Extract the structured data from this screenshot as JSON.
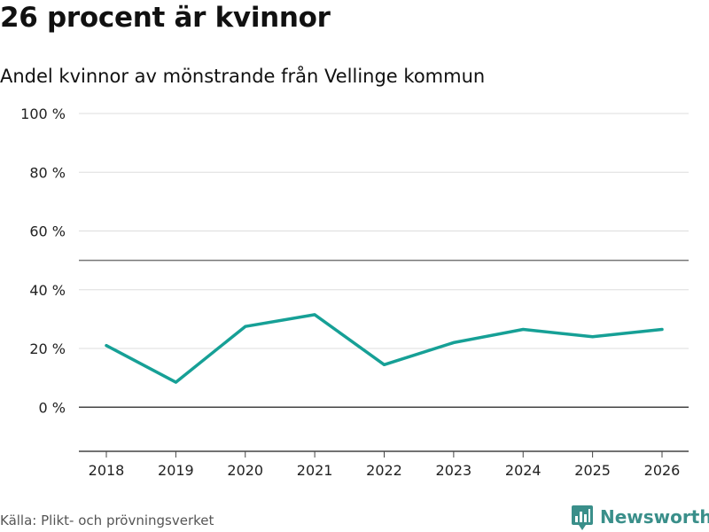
{
  "header": {
    "title": "26 procent är kvinnor",
    "subtitle": "Andel kvinnor av mönstrande från Vellinge kommun"
  },
  "footer": {
    "source": "Källa: Plikt- och prövningsverket",
    "brand": "Newsworthy"
  },
  "colors": {
    "line": "#16a096",
    "grid": "#dddddd",
    "reference": "#444444",
    "brand": "#3a8f8a"
  },
  "chart_data": {
    "type": "line",
    "title": "26 procent är kvinnor",
    "subtitle": "Andel kvinnor av mönstrande från Vellinge kommun",
    "xlabel": "",
    "ylabel": "",
    "x": [
      "2018",
      "2019",
      "2020",
      "2021",
      "2022",
      "2023",
      "2024",
      "2025",
      "2026"
    ],
    "series": [
      {
        "name": "Andel kvinnor",
        "values": [
          21,
          8.5,
          27.5,
          31.5,
          14.5,
          22,
          26.5,
          24,
          26.5
        ]
      }
    ],
    "ylim": [
      -15,
      100
    ],
    "yticks": [
      0,
      20,
      40,
      60,
      80,
      100
    ],
    "ytick_labels": [
      "0 %",
      "20 %",
      "40 %",
      "60 %",
      "80 %",
      "100 %"
    ],
    "reference_line": 50,
    "grid": true
  }
}
